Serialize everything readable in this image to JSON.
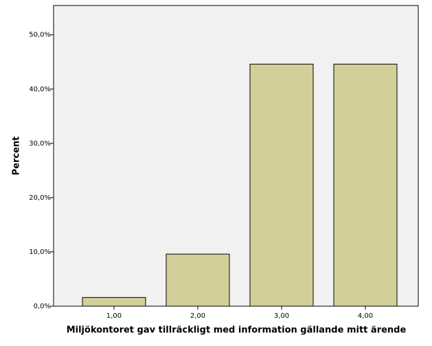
{
  "chart_data": {
    "type": "bar",
    "x_label": "Miljökontoret gav tillräckligt med information gällande mitt ärende",
    "y_label": "Percent",
    "categories": [
      "1,00",
      "2,00",
      "3,00",
      "4,00"
    ],
    "values": [
      1.6,
      9.6,
      44.6,
      44.6
    ],
    "color": "#d3cf98",
    "ylim": [
      0,
      55.4
    ],
    "yticks": [
      {
        "value": 0,
        "label": "0,0%"
      },
      {
        "value": 10,
        "label": "10,0%"
      },
      {
        "value": 20,
        "label": "20,0%"
      },
      {
        "value": 30,
        "label": "30,0%"
      },
      {
        "value": 40,
        "label": "40,0%"
      },
      {
        "value": 50,
        "label": "50,0%"
      }
    ]
  }
}
